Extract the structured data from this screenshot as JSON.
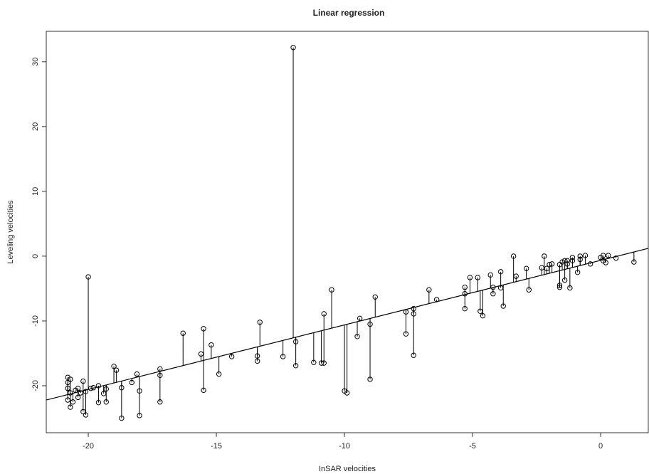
{
  "chart_data": {
    "type": "scatter",
    "title": "Linear regression",
    "x_label": "InSAR velocities",
    "y_label": "Leveling velocities",
    "x": [
      -20.8,
      -20.8,
      -20.8,
      -20.8,
      -20.7,
      -20.7,
      -20.7,
      -20.6,
      -20.5,
      -20.4,
      -20.4,
      -20.3,
      -20.2,
      -20.2,
      -20.1,
      -20.1,
      -20.0,
      -19.9,
      -19.8,
      -19.6,
      -19.6,
      -19.4,
      -19.3,
      -19.3,
      -19.0,
      -18.9,
      -18.7,
      -18.7,
      -18.3,
      -18.1,
      -18.0,
      -18.0,
      -17.2,
      -17.2,
      -17.2,
      -16.3,
      -15.6,
      -15.5,
      -15.5,
      -15.2,
      -14.9,
      -14.4,
      -13.4,
      -13.4,
      -13.3,
      -12.4,
      -12.0,
      -11.9,
      -11.9,
      -11.2,
      -10.9,
      -10.8,
      -10.8,
      -10.5,
      -10.0,
      -9.9,
      -9.5,
      -9.4,
      -9.0,
      -9.0,
      -8.8,
      -7.6,
      -7.6,
      -7.3,
      -7.3,
      -7.3,
      -6.7,
      -6.4,
      -5.3,
      -5.3,
      -5.3,
      -5.1,
      -4.8,
      -4.7,
      -4.6,
      -4.3,
      -4.2,
      -4.2,
      -3.9,
      -3.9,
      -3.8,
      -3.4,
      -3.3,
      -2.9,
      -2.8,
      -2.3,
      -2.2,
      -2.1,
      -2.0,
      -1.9,
      -1.6,
      -1.6,
      -1.6,
      -1.5,
      -1.4,
      -1.4,
      -1.3,
      -1.3,
      -1.2,
      -1.1,
      -1.1,
      -0.9,
      -0.8,
      -0.8,
      -0.6,
      -0.4,
      0.0,
      0.1,
      0.1,
      0.2,
      0.3,
      0.6,
      1.3
    ],
    "values": [
      -18.7,
      -19.5,
      -20.4,
      -22.2,
      -23.3,
      -19.0,
      -21.1,
      -22.5,
      -20.7,
      -21.8,
      -20.4,
      -21.1,
      -19.3,
      -24.0,
      -20.9,
      -24.5,
      -3.2,
      -20.4,
      -20.3,
      -20.0,
      -22.6,
      -21.2,
      -20.5,
      -22.5,
      -17.0,
      -17.6,
      -20.3,
      -25.0,
      -19.5,
      -18.2,
      -20.8,
      -24.6,
      -17.4,
      -18.4,
      -22.5,
      -11.9,
      -15.1,
      -11.2,
      -20.7,
      -13.7,
      -18.2,
      -15.5,
      -15.4,
      -16.2,
      -10.2,
      -15.5,
      32.2,
      -13.2,
      -16.9,
      -16.4,
      -16.5,
      -8.9,
      -16.5,
      -5.2,
      -20.8,
      -21.1,
      -12.4,
      -9.6,
      -10.5,
      -19.0,
      -6.3,
      -12.0,
      -8.6,
      -8.1,
      -8.9,
      -15.3,
      -5.2,
      -6.7,
      -4.8,
      -8.1,
      -5.8,
      -3.3,
      -3.3,
      -8.5,
      -9.2,
      -2.9,
      -4.8,
      -5.8,
      -2.4,
      -4.9,
      -7.7,
      0.0,
      -3.1,
      -1.9,
      -5.2,
      -1.8,
      0.0,
      -1.9,
      -1.3,
      -1.2,
      -4.8,
      -1.3,
      -4.5,
      -0.9,
      -0.7,
      -3.7,
      -1.2,
      -0.7,
      -4.9,
      -0.2,
      -0.7,
      -2.5,
      0.0,
      -0.5,
      0.1,
      -1.2,
      -0.2,
      0.1,
      -0.7,
      -1.0,
      0.1,
      -0.3,
      -0.9
    ],
    "regression": {
      "intercept": -0.65,
      "slope": 0.996
    },
    "xlim": [
      -21.64,
      1.86
    ],
    "ylim": [
      -27.25,
      34.7
    ],
    "xticks": [
      -20,
      -15,
      -10,
      -5,
      0
    ],
    "yticks": [
      -20,
      -10,
      0,
      10,
      20,
      30
    ]
  }
}
